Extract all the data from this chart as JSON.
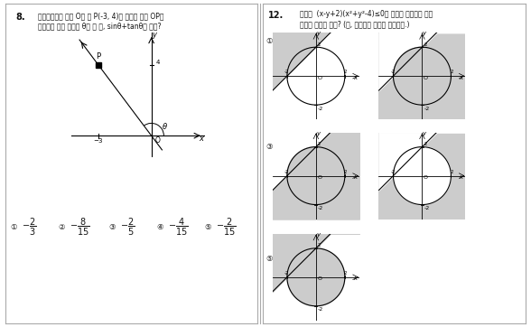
{
  "bg_color": "#ffffff",
  "white": "#ffffff",
  "gray_shade": "#cccccc",
  "dark": "#111111",
  "line_color": "#888888",
  "q8_line1": "8.  좌표평면에서 원점 O와 점 P(-3, 4)을 지나는 동경 OP가",
  "q8_line2": "    나타내는 각의 크기를 θ라 할 때, sinθ+tanθ의 값은?",
  "q12_line1": "12.  부등식  (x-y+2)(x²+y²-4)≤0의 영역을 좌표평면 위에",
  "q12_line2": "     어떻게 나타낸 것은? (단, 경계선은 영역에 포함된다.)"
}
